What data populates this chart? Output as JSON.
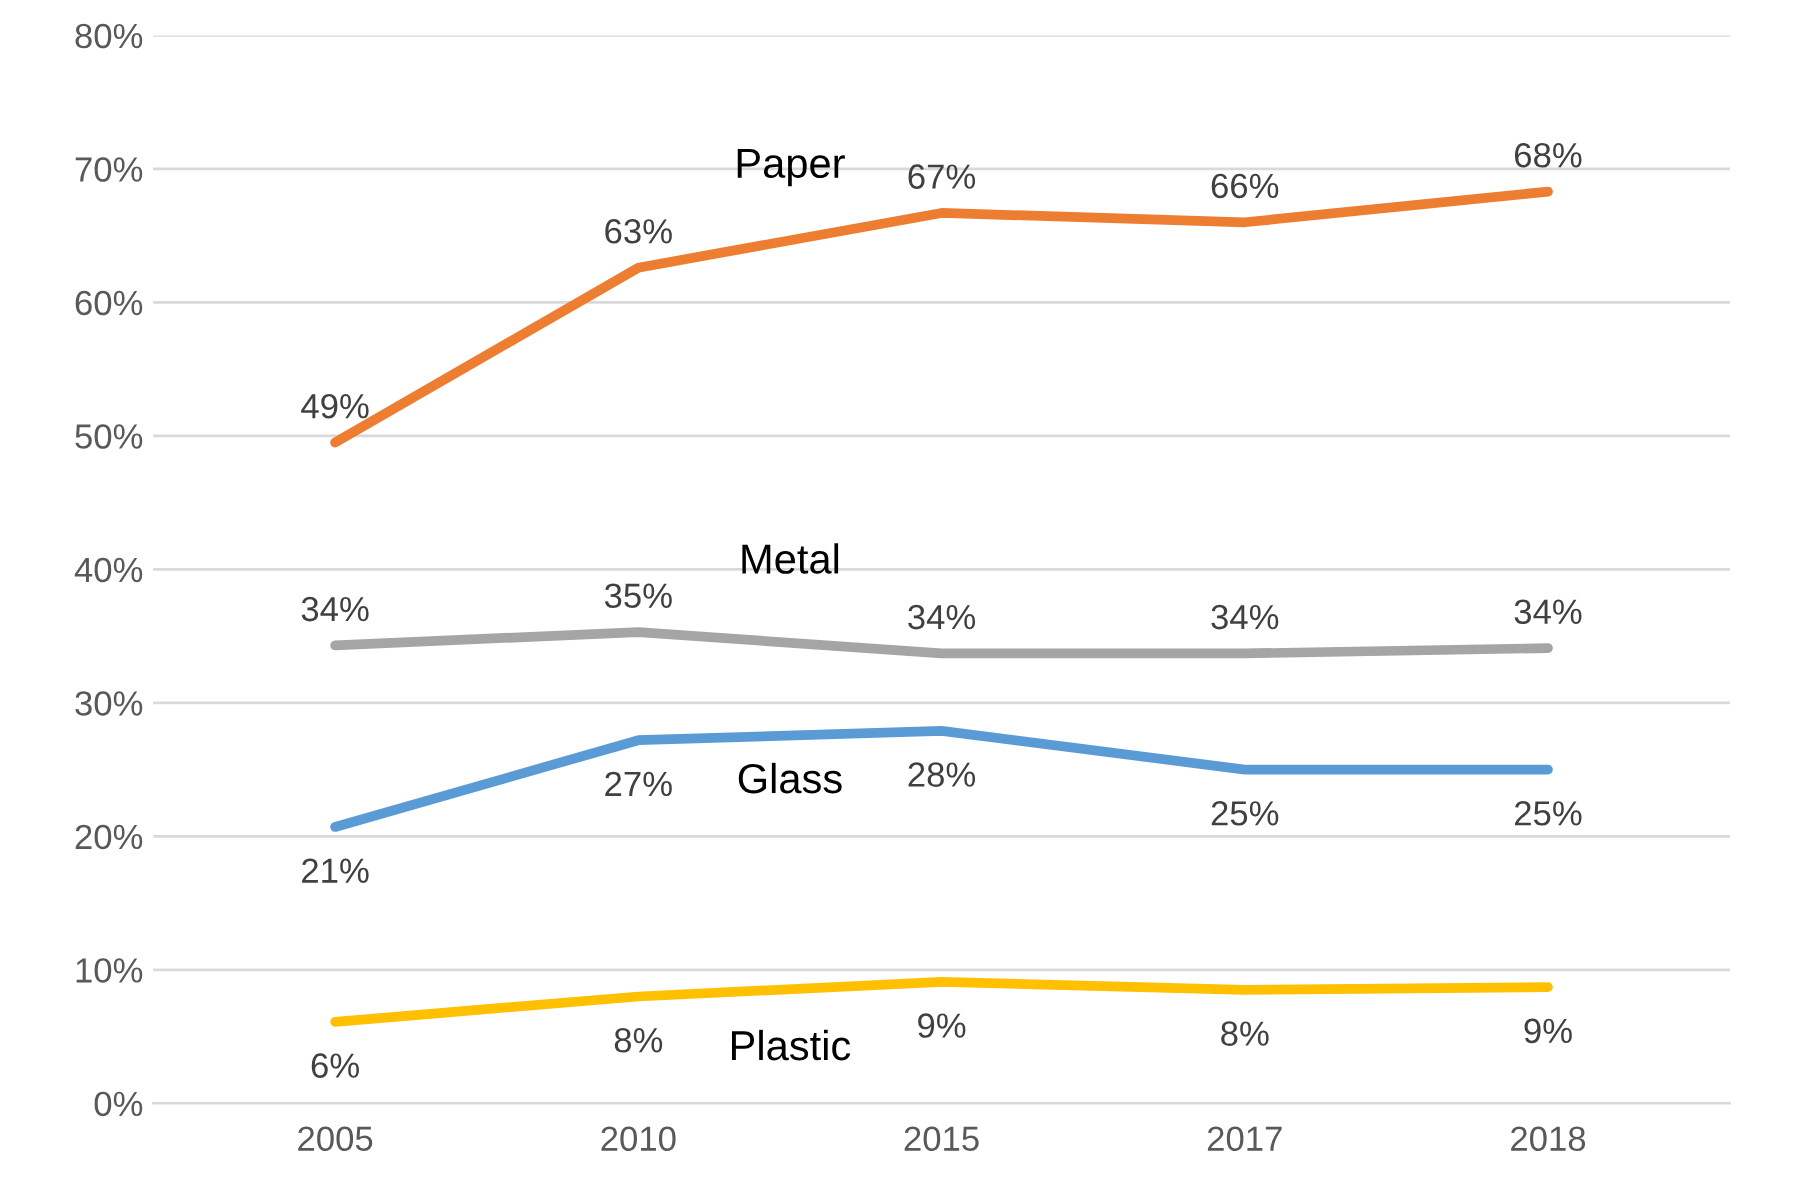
{
  "chart_data": {
    "type": "line",
    "categories": [
      "2005",
      "2010",
      "2015",
      "2017",
      "2018"
    ],
    "series": [
      {
        "name": "Paper",
        "color": "#ed7d31",
        "values": [
          49.5,
          62.6,
          66.7,
          66.0,
          68.3
        ],
        "value_labels": [
          "49%",
          "63%",
          "67%",
          "66%",
          "68%"
        ]
      },
      {
        "name": "Metal",
        "color": "#a5a5a5",
        "values": [
          34.3,
          35.3,
          33.7,
          33.7,
          34.1
        ],
        "value_labels": [
          "34%",
          "35%",
          "34%",
          "34%",
          "34%"
        ]
      },
      {
        "name": "Glass",
        "color": "#5b9bd5",
        "values": [
          20.7,
          27.2,
          27.9,
          25.0,
          25.0
        ],
        "value_labels": [
          "21%",
          "27%",
          "28%",
          "25%",
          "25%"
        ]
      },
      {
        "name": "Plastic",
        "color": "#ffc000",
        "values": [
          6.1,
          8.0,
          9.1,
          8.5,
          8.7
        ],
        "value_labels": [
          "6%",
          "8%",
          "9%",
          "8%",
          "9%"
        ]
      }
    ],
    "ylim": [
      0,
      80
    ],
    "yticks": [
      {
        "value": 0,
        "label": "0%"
      },
      {
        "value": 10,
        "label": "10%"
      },
      {
        "value": 20,
        "label": "20%"
      },
      {
        "value": 30,
        "label": "30%"
      },
      {
        "value": 40,
        "label": "40%"
      },
      {
        "value": 50,
        "label": "50%"
      },
      {
        "value": 60,
        "label": "60%"
      },
      {
        "value": 70,
        "label": "70%"
      },
      {
        "value": 80,
        "label": "80%"
      }
    ],
    "grid": "y",
    "legend": false,
    "marker": "none",
    "line_style": "solid"
  }
}
